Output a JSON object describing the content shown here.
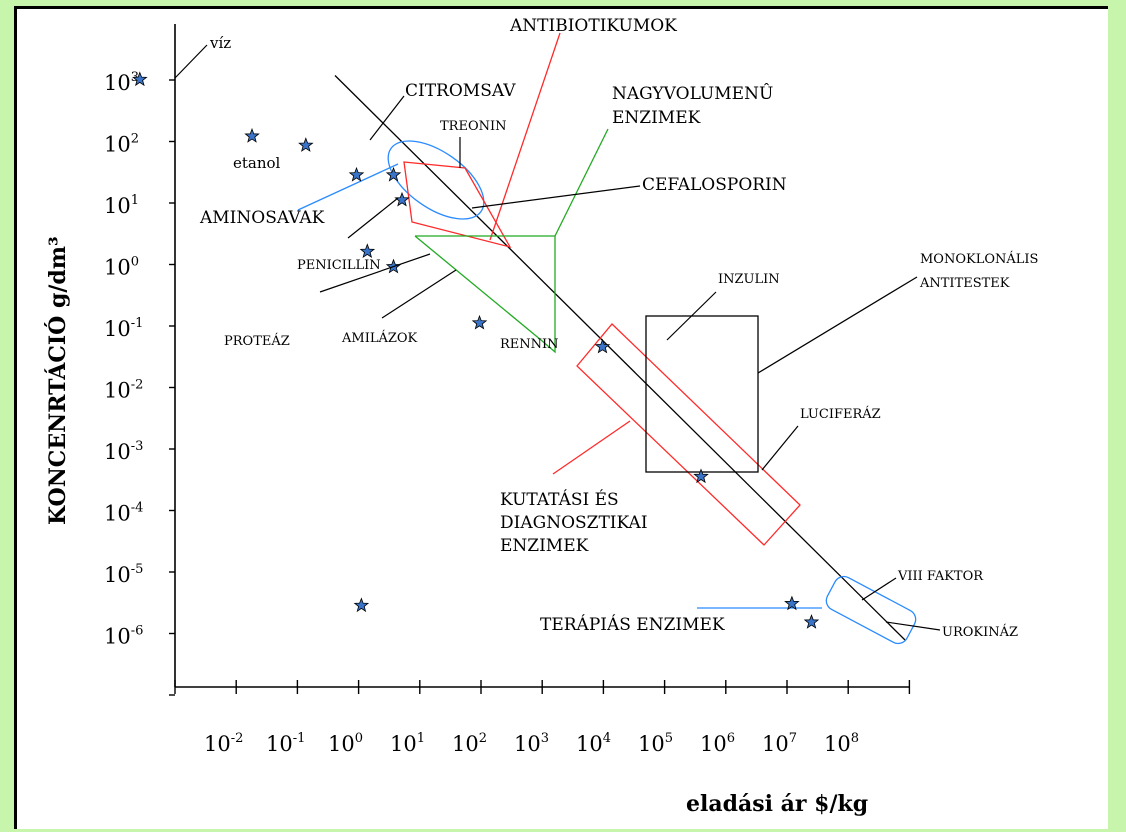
{
  "chart_data": {
    "type": "scatter",
    "title": "",
    "xlabel": "eladási ár $/kg",
    "ylabel": "KONCENRTÁCIÓ g/dm³",
    "x_scale": "log",
    "y_scale": "log",
    "x_tick_labels": [
      {
        "base": "10",
        "exp": "-2"
      },
      {
        "base": "10",
        "exp": "-1"
      },
      {
        "base": "10",
        "exp": "0"
      },
      {
        "base": "10",
        "exp": "1"
      },
      {
        "base": "10",
        "exp": "2"
      },
      {
        "base": "10",
        "exp": "3"
      },
      {
        "base": "10",
        "exp": "4"
      },
      {
        "base": "10",
        "exp": "5"
      },
      {
        "base": "10",
        "exp": "6"
      },
      {
        "base": "10",
        "exp": "7"
      },
      {
        "base": "10",
        "exp": "8"
      }
    ],
    "y_tick_labels": [
      {
        "base": "10",
        "exp": "3"
      },
      {
        "base": "10",
        "exp": "2"
      },
      {
        "base": "10",
        "exp": "1"
      },
      {
        "base": "10",
        "exp": "0"
      },
      {
        "base": "10",
        "exp": "-1"
      },
      {
        "base": "10",
        "exp": "-2"
      },
      {
        "base": "10",
        "exp": "-3"
      },
      {
        "base": "10",
        "exp": "-4"
      },
      {
        "base": "10",
        "exp": "-5"
      },
      {
        "base": "10",
        "exp": "-6"
      }
    ],
    "points": [
      {
        "name": "víz",
        "x": 0.003,
        "y": 1000
      },
      {
        "name": "etanol",
        "x": 0.2,
        "y": 120
      },
      {
        "name": "CITROMSAV",
        "x": 1.5,
        "y": 85
      },
      {
        "name": "AMINOSAVAK",
        "x": 10,
        "y": 28
      },
      {
        "name": "TREONIN",
        "x": 40,
        "y": 28
      },
      {
        "name": "CEFALOSPORIN",
        "x": 55,
        "y": 11
      },
      {
        "name": "PENICILLIN",
        "x": 15,
        "y": 1.6
      },
      {
        "name": "AMILÁZOK",
        "x": 40,
        "y": 0.9
      },
      {
        "name": "RENNIN",
        "x": 1000,
        "y": 0.11
      },
      {
        "name": "INZULIN",
        "x": 100000,
        "y": 0.045
      },
      {
        "name": "LUCIFERÁZ",
        "x": 4000000,
        "y": 0.00035
      },
      {
        "name": "VIII FAKTOR",
        "x": 120000000,
        "y": 3e-06
      },
      {
        "name": "UROKINÁZ",
        "x": 250000000,
        "y": 1.5e-06
      },
      {
        "name": "",
        "x": 12,
        "y": 2.8e-06
      }
    ],
    "group_labels": {
      "antibiotics": "ANTIBIOTIKUMOK",
      "bulk_enzymes": "NAGYVOLUMENÛ ENZIMEK",
      "monoclonal": "MONOKLONÁLIS ANTITESTEK",
      "research_enzymes": "KUTATÁSI ÉS DIAGNOSZTIKAI ENZIMEK",
      "proteases": "PROTEÁZ",
      "therapeutic_enzymes": "TERÁPIÁS ENZIMEK"
    },
    "trend_line": {
      "from": {
        "x": 1,
        "y": 1000
      },
      "to": {
        "x": 500000000,
        "y": 1e-06
      }
    },
    "grid": false,
    "legend": "none",
    "colors": {
      "antibiotics": "#ff2a2a",
      "bulk_enzymes": "#22aa22",
      "amino_acids": "#2a8bff",
      "therapeutic": "#2a8bff",
      "monoclonal": "#000000",
      "research": "#ff2a2a",
      "star_fill": "#3a74c8",
      "background": "#c6f5ab"
    }
  }
}
